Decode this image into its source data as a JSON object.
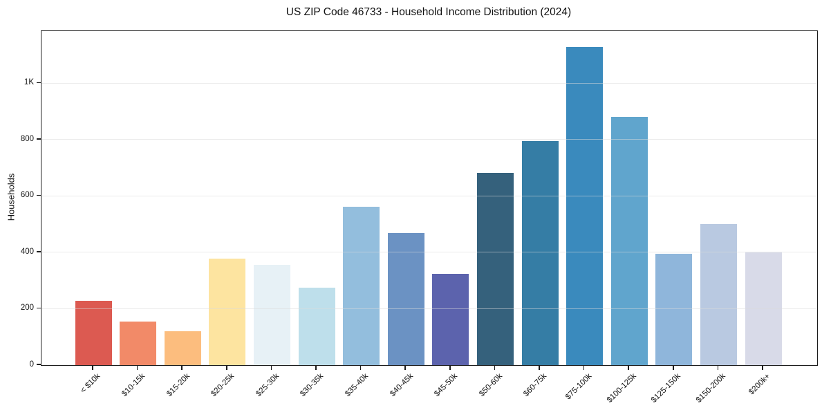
{
  "figure": {
    "background": "#ffffff"
  },
  "chart_data": {
    "type": "bar",
    "title": "US ZIP Code 46733 - Household Income Distribution (2024)",
    "xlabel": "",
    "ylabel": "Households",
    "categories": [
      "< $10k",
      "$10-15k",
      "$15-20k",
      "$20-25k",
      "$25-30k",
      "$30-35k",
      "$35-40k",
      "$40-45k",
      "$45-50k",
      "$50-60k",
      "$60-75k",
      "$75-100k",
      "$100-125k",
      "$125-150k",
      "$150-200k",
      "$200k+"
    ],
    "values": [
      228,
      155,
      120,
      378,
      355,
      276,
      563,
      468,
      325,
      682,
      795,
      1128,
      881,
      394,
      500,
      401
    ],
    "bar_colors": [
      "#dc5a51",
      "#f28a68",
      "#fcbd7e",
      "#fde4a0",
      "#e7f1f6",
      "#bedfeb",
      "#93bedd",
      "#6b92c3",
      "#5c63ad",
      "#35617c",
      "#357da5",
      "#3a8abd",
      "#60a5cd",
      "#8fb6db",
      "#b9c9e1",
      "#d8dae8"
    ],
    "ylim": [
      0,
      1185
    ],
    "yticks": {
      "values": [
        0,
        200,
        400,
        600,
        800,
        1000
      ],
      "labels": [
        "0",
        "200",
        "400",
        "600",
        "800",
        "1K"
      ]
    },
    "grid": "horizontal",
    "legend": "none",
    "frame_color": "#1c1c1c",
    "gridline_color": "#eaeaea"
  }
}
